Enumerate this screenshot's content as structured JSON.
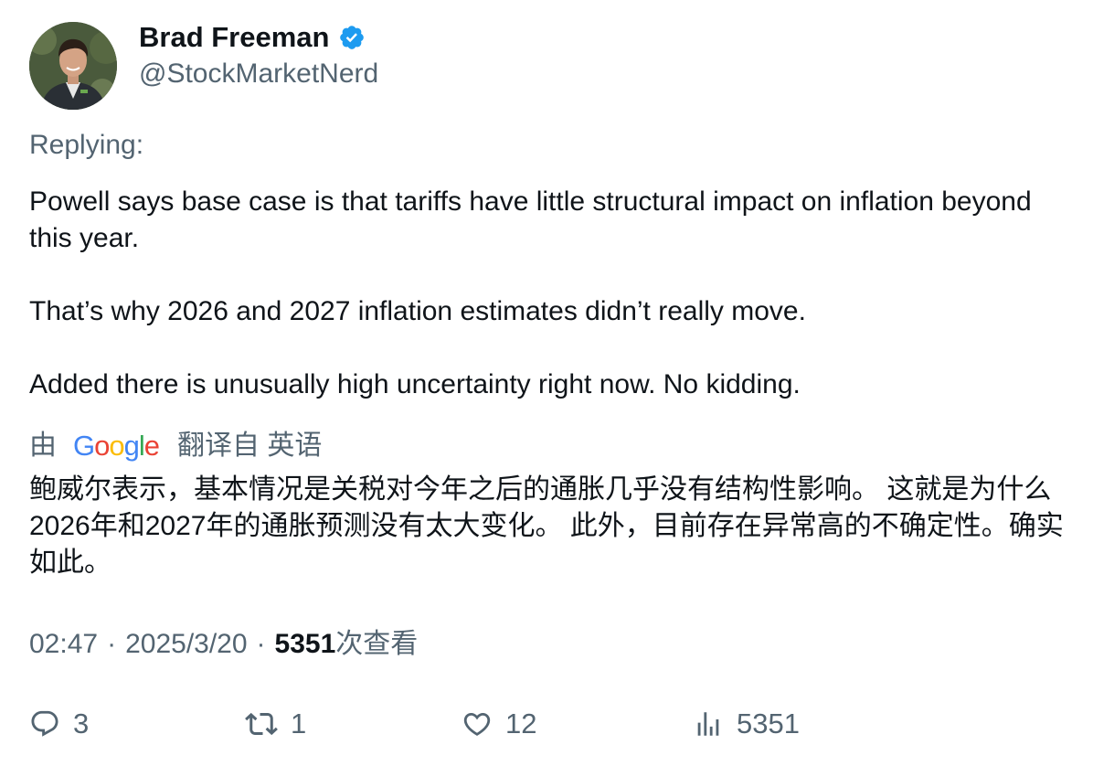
{
  "author": {
    "display_name": "Brad Freeman",
    "handle": "@StockMarketNerd",
    "verified": true
  },
  "replying_label": "Replying:",
  "tweet": {
    "paragraphs": [
      "Powell says base case is that tariffs have little structural impact on inflation beyond this year.",
      "That’s why 2026 and 2027 inflation estimates didn’t really move.",
      "Added there is unusually high uncertainty right now. No kidding."
    ]
  },
  "translation": {
    "by_label": "由",
    "provider": "Google",
    "translated_from": "翻译自 英语",
    "text": "鲍威尔表示，基本情况是关税对今年之后的通胀几乎没有结构性影响。 这就是为什么2026年和2027年的通胀预测没有太大变化。 此外，目前存在异常高的不确定性。确实如此。"
  },
  "meta": {
    "time": "02:47",
    "separator": "·",
    "date": "2025/3/20",
    "views_count": "5351",
    "views_label": "次查看"
  },
  "actions": {
    "replies": "3",
    "retweets": "1",
    "likes": "12",
    "views": "5351"
  },
  "icons": {
    "verified": "verified-badge-icon",
    "reply": "reply-bubble-icon",
    "retweet": "retweet-icon",
    "like": "heart-icon",
    "views": "views-bar-chart-icon"
  },
  "colors": {
    "text_primary": "#0f1419",
    "text_secondary": "#536471",
    "verified_blue": "#1d9bf0"
  }
}
